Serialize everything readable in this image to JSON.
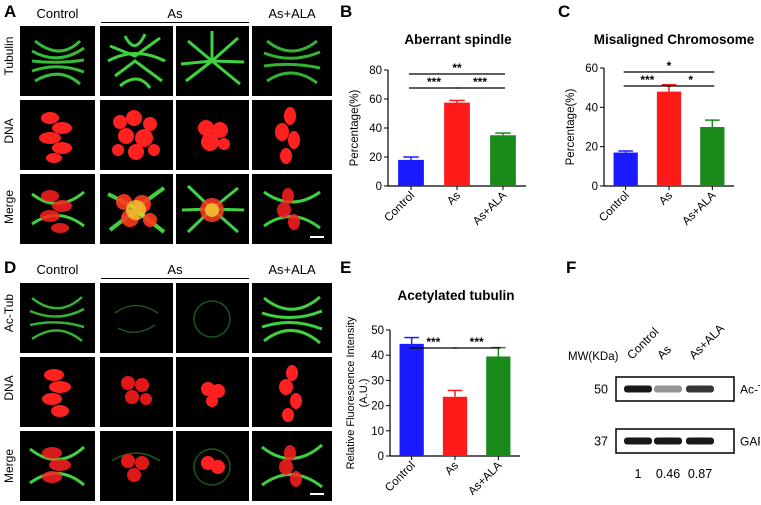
{
  "panels": {
    "A": {
      "letter": "A",
      "columns": [
        "Control",
        "As",
        "As+ALA"
      ],
      "rows": [
        "Tubulin",
        "DNA",
        "Merge"
      ]
    },
    "D": {
      "letter": "D",
      "columns": [
        "Control",
        "As",
        "As+ALA"
      ],
      "rows": [
        "Ac-Tub",
        "DNA",
        "Merge"
      ]
    },
    "F": {
      "letter": "F",
      "mw_header": "MW(KDa)",
      "lanes": [
        "Control",
        "As",
        "As+ALA"
      ],
      "bands": [
        {
          "mw": "50",
          "protein": "Ac-Tub",
          "intensity": [
            1.0,
            0.46,
            0.87
          ]
        },
        {
          "mw": "37",
          "protein": "GAPDH",
          "intensity": [
            1.0,
            1.0,
            1.0
          ]
        }
      ],
      "ratios": [
        "1",
        "0.46",
        "0.87"
      ]
    }
  },
  "chart_data": [
    {
      "panel": "B",
      "type": "bar",
      "title": "Aberrant spindle",
      "ylabel": "Percentage(%)",
      "categories": [
        "Control",
        "As",
        "As+ALA"
      ],
      "values": [
        18,
        57.5,
        35
      ],
      "errors": [
        2,
        1.5,
        1.5
      ],
      "colors": [
        "#1a1aff",
        "#ff1a1a",
        "#1a8a1a"
      ],
      "ylim": [
        0,
        80
      ],
      "yticks": [
        0,
        20,
        40,
        60,
        80
      ],
      "significance": [
        {
          "from": 0,
          "to": 2,
          "label": "**"
        },
        {
          "from": 0,
          "to": 1,
          "label": "***"
        },
        {
          "from": 1,
          "to": 2,
          "label": "***"
        }
      ]
    },
    {
      "panel": "C",
      "type": "bar",
      "title": "Misaligned Chromosome",
      "ylabel": "Percentage(%)",
      "categories": [
        "Control",
        "As",
        "As+ALA"
      ],
      "values": [
        17,
        48,
        30
      ],
      "errors": [
        0.8,
        3.5,
        3.5
      ],
      "colors": [
        "#1a1aff",
        "#ff1a1a",
        "#1a8a1a"
      ],
      "ylim": [
        0,
        60
      ],
      "yticks": [
        0,
        20,
        40,
        60
      ],
      "significance": [
        {
          "from": 0,
          "to": 2,
          "label": "*"
        },
        {
          "from": 0,
          "to": 1,
          "label": "***"
        },
        {
          "from": 1,
          "to": 2,
          "label": "*"
        }
      ]
    },
    {
      "panel": "E",
      "type": "bar",
      "title": "Acetylated tubulin",
      "ylabel": "Relative Fluorescence Intensity (A.U.)",
      "ylabel_lines": [
        "Relative Fluorescence Intensity",
        "(A.U.)"
      ],
      "categories": [
        "Control",
        "As",
        "As+ALA"
      ],
      "values": [
        44.5,
        23.5,
        39.5
      ],
      "errors": [
        2.5,
        2.5,
        3.5
      ],
      "colors": [
        "#1a1aff",
        "#ff1a1a",
        "#1a8a1a"
      ],
      "ylim": [
        0,
        50
      ],
      "yticks": [
        0,
        10,
        20,
        30,
        40,
        50
      ],
      "significance": [
        {
          "from": 0,
          "to": 1,
          "label": "***"
        },
        {
          "from": 1,
          "to": 2,
          "label": "***"
        }
      ]
    }
  ]
}
